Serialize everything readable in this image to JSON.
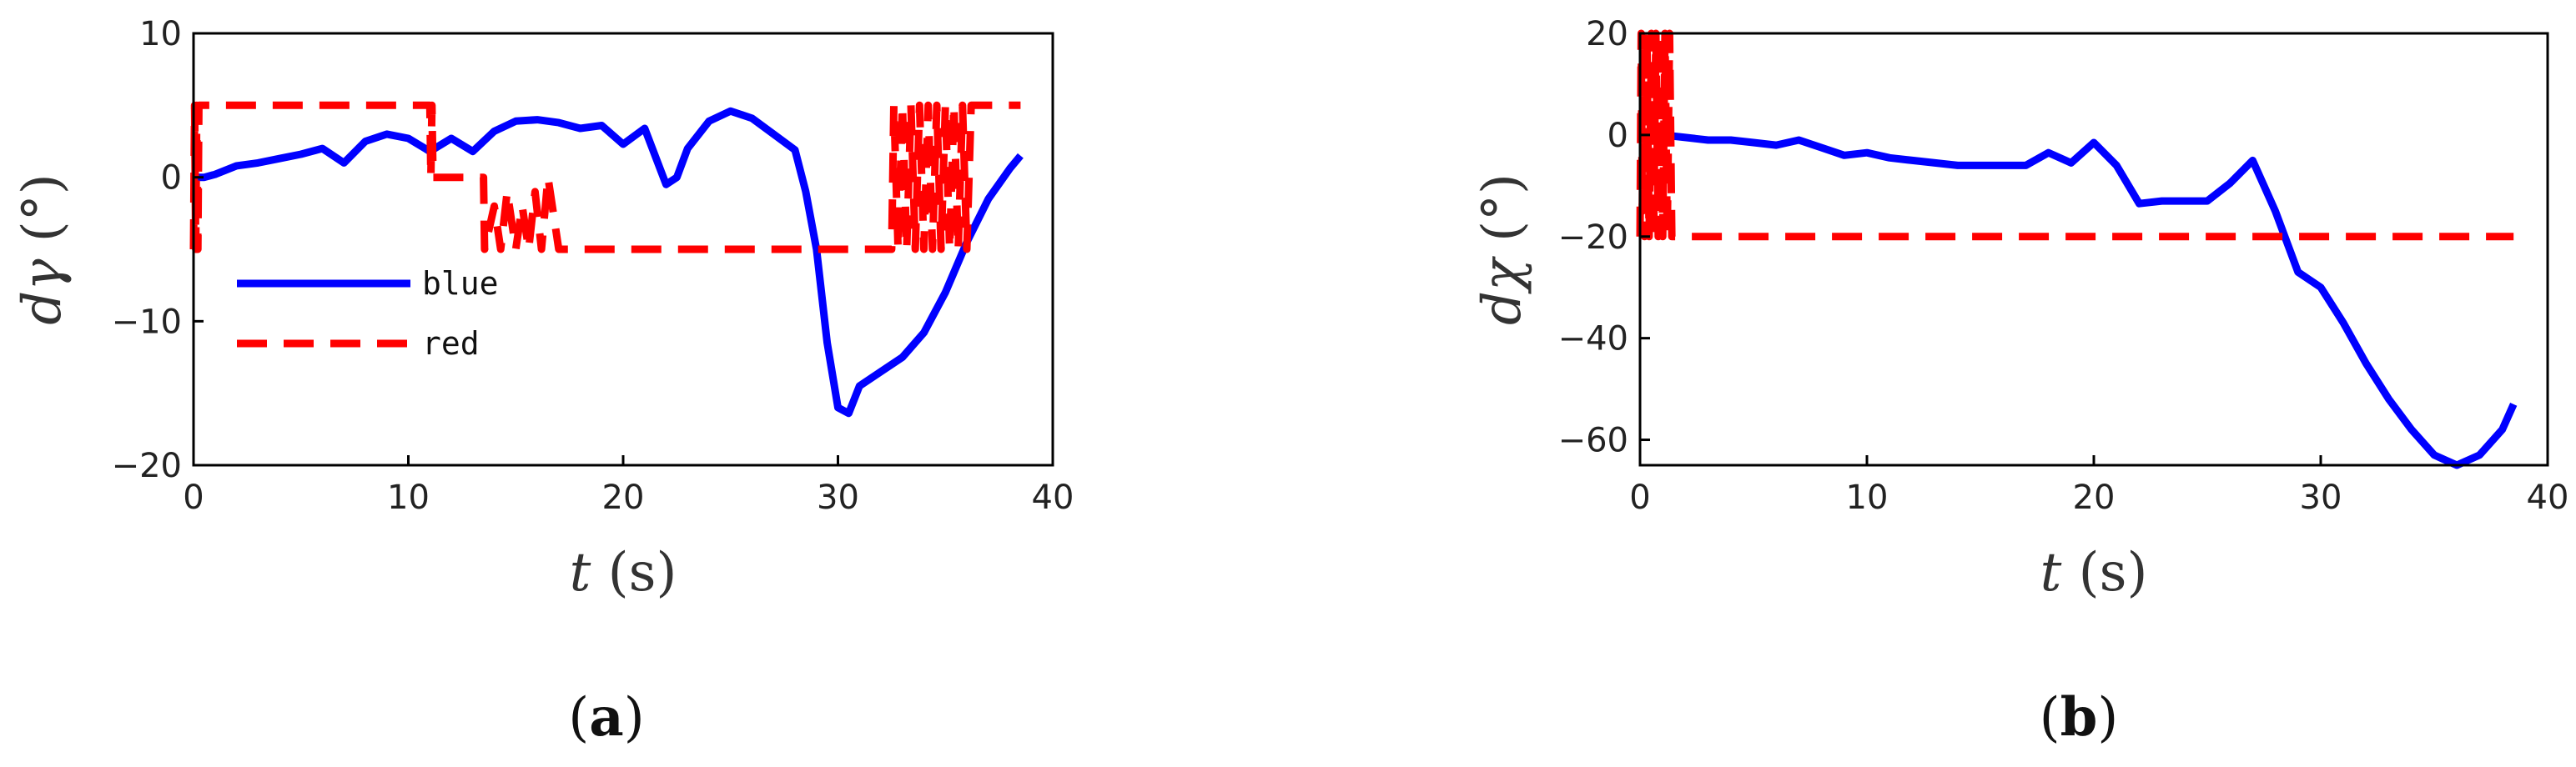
{
  "chart_data": [
    {
      "type": "line",
      "panel": "a",
      "xlabel_var": "t",
      "xlabel_unit": " (s)",
      "ylabel_var": "dγ",
      "ylabel_unit": " (°)",
      "xlim": [
        0,
        40
      ],
      "ylim": [
        -20,
        10
      ],
      "xticks": [
        0,
        10,
        20,
        30,
        40
      ],
      "yticks": [
        -20,
        -10,
        0,
        10
      ],
      "legend_position": "lower-left-inside",
      "series": [
        {
          "name": "blue",
          "color": "#0000ff",
          "style": "solid",
          "x": [
            0,
            0.5,
            1,
            2,
            3,
            4,
            5,
            6,
            7,
            8,
            9,
            10,
            11,
            12,
            13,
            14,
            15,
            16,
            17,
            18,
            19,
            20,
            21,
            22,
            22.5,
            23,
            24,
            25,
            26,
            27,
            28,
            28.5,
            29,
            29.5,
            30,
            30.5,
            31,
            32,
            33,
            34,
            35,
            36,
            37,
            38,
            38.5
          ],
          "y": [
            0,
            0,
            0.2,
            0.8,
            1,
            1.3,
            1.6,
            2.0,
            1.0,
            2.5,
            3.0,
            2.7,
            1.8,
            2.7,
            1.8,
            3.2,
            3.9,
            4.0,
            3.8,
            3.4,
            3.6,
            2.3,
            3.4,
            -0.5,
            0,
            2.0,
            3.9,
            4.6,
            4.1,
            3.0,
            1.9,
            -1.0,
            -5.0,
            -11.5,
            -16.0,
            -16.4,
            -14.5,
            -13.5,
            -12.5,
            -10.8,
            -8.0,
            -4.5,
            -1.5,
            0.6,
            1.5
          ]
        },
        {
          "name": "red",
          "color": "#ff0000",
          "style": "dashed",
          "x": [
            0,
            0.05,
            0.1,
            0.15,
            0.2,
            0.25,
            0.3,
            11,
            11.05,
            11.1,
            11.15,
            13.5,
            13.55,
            14,
            14.3,
            14.6,
            15.0,
            15.3,
            15.6,
            15.9,
            16.2,
            16.5,
            17,
            29,
            32.5,
            32.6,
            32.8,
            33.0,
            33.2,
            33.4,
            33.6,
            33.8,
            34.0,
            34.2,
            34.4,
            34.6,
            34.8,
            35.0,
            35.2,
            35.4,
            35.6,
            35.8,
            36.0,
            36.2,
            38.5
          ],
          "y": [
            -5,
            5,
            -5,
            5,
            -5,
            5,
            5,
            5,
            0,
            5,
            0,
            0,
            -5,
            -2,
            -5,
            -1,
            -5,
            -2,
            -5,
            -1,
            -5,
            0,
            -5,
            -5,
            -5,
            5,
            -5,
            5,
            -5,
            5,
            -5,
            5,
            -5,
            5,
            -5,
            5,
            -5,
            5,
            -5,
            5,
            -5,
            5,
            -5,
            5,
            5
          ]
        }
      ],
      "legend": [
        {
          "label": "blue",
          "color": "#0000ff",
          "style": "solid"
        },
        {
          "label": "red",
          "color": "#ff0000",
          "style": "dashed"
        }
      ]
    },
    {
      "type": "line",
      "panel": "b",
      "xlabel_var": "t",
      "xlabel_unit": " (s)",
      "ylabel_var": "dχ",
      "ylabel_unit": " (°)",
      "xlim": [
        0,
        40
      ],
      "ylim": [
        -65,
        20
      ],
      "xticks": [
        0,
        10,
        20,
        30,
        40
      ],
      "yticks": [
        -60,
        -40,
        -20,
        0,
        20
      ],
      "series": [
        {
          "name": "blue",
          "color": "#0000ff",
          "style": "solid",
          "x": [
            0,
            1,
            2,
            3,
            4,
            5,
            6,
            7,
            8,
            9,
            10,
            11,
            12,
            13,
            14,
            15,
            16,
            17,
            18,
            19,
            20,
            21,
            22,
            23,
            24,
            25,
            26,
            27,
            28,
            29,
            30,
            31,
            32,
            33,
            34,
            35,
            36,
            37,
            38,
            38.5
          ],
          "y": [
            0,
            0,
            -0.5,
            -1,
            -1,
            -1.5,
            -2,
            -1,
            -2.5,
            -4,
            -3.5,
            -4.5,
            -5,
            -5.5,
            -6,
            -6,
            -6,
            -6,
            -3.5,
            -5.5,
            -1.5,
            -6,
            -13.5,
            -13,
            -13,
            -13,
            -9.5,
            -5,
            -15,
            -27,
            -30,
            -37,
            -45,
            -52,
            -58,
            -63,
            -65,
            -63,
            -58,
            -53
          ]
        },
        {
          "name": "red",
          "color": "#ff0000",
          "style": "dashed",
          "x": [
            0,
            0.05,
            0.1,
            0.15,
            0.2,
            0.3,
            0.4,
            0.5,
            0.6,
            0.7,
            0.8,
            0.9,
            1.0,
            1.1,
            1.2,
            1.3,
            1.4,
            38.5
          ],
          "y": [
            -20,
            20,
            -15,
            20,
            -20,
            20,
            -20,
            20,
            -20,
            20,
            -20,
            20,
            -20,
            20,
            -20,
            20,
            -20,
            -20
          ]
        }
      ]
    }
  ],
  "panel_labels": [
    "(a)",
    "(b)"
  ],
  "panel_labels_parts": [
    {
      "open": "(",
      "letter": "a",
      "close": ")"
    },
    {
      "open": "(",
      "letter": "b",
      "close": ")"
    }
  ]
}
